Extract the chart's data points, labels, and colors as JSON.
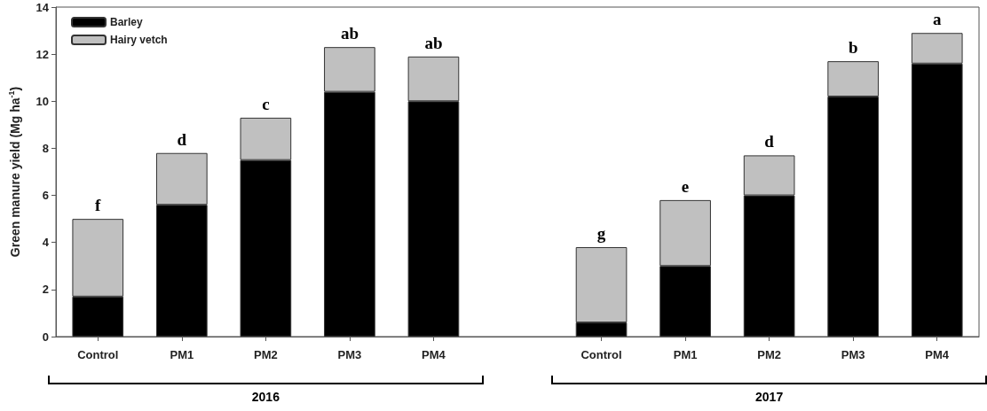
{
  "chart_data": {
    "type": "bar",
    "stacked": true,
    "ylabel": "Green manure yield (Mg ha$^{-1}$)",
    "categories": [
      "Control",
      "PM1",
      "PM2",
      "PM3",
      "PM4",
      null,
      "Control",
      "PM1",
      "PM2",
      "PM3",
      "PM4"
    ],
    "series": [
      {
        "name": "Barley",
        "color": "#000000",
        "values": [
          1.7,
          5.6,
          7.5,
          10.4,
          10.0,
          null,
          0.6,
          3.0,
          6.0,
          10.2,
          11.6
        ]
      },
      {
        "name": "Hairy vetch",
        "color": "#c0c0c0",
        "values": [
          3.3,
          2.2,
          1.8,
          1.9,
          1.9,
          null,
          3.2,
          2.8,
          1.7,
          1.5,
          1.3
        ]
      }
    ],
    "ylim": [
      0,
      14
    ],
    "yticks": [
      0,
      2,
      4,
      6,
      8,
      10,
      12,
      14
    ],
    "grid": false,
    "legend": "top left",
    "annotations": [
      {
        "text": "f",
        "y": 5.0
      },
      {
        "text": "d",
        "y": 7.8
      },
      {
        "text": "c",
        "y": 9.3
      },
      {
        "text": "ab",
        "y": 12.3
      },
      {
        "text": "ab",
        "y": 11.9
      },
      {
        "text": "g",
        "y": 3.8
      },
      {
        "text": "e",
        "y": 5.8
      },
      {
        "text": "d",
        "y": 7.7
      },
      {
        "text": "b",
        "y": 11.7
      },
      {
        "text": "a",
        "y": 12.9
      },
      "2016",
      "2017"
    ]
  }
}
